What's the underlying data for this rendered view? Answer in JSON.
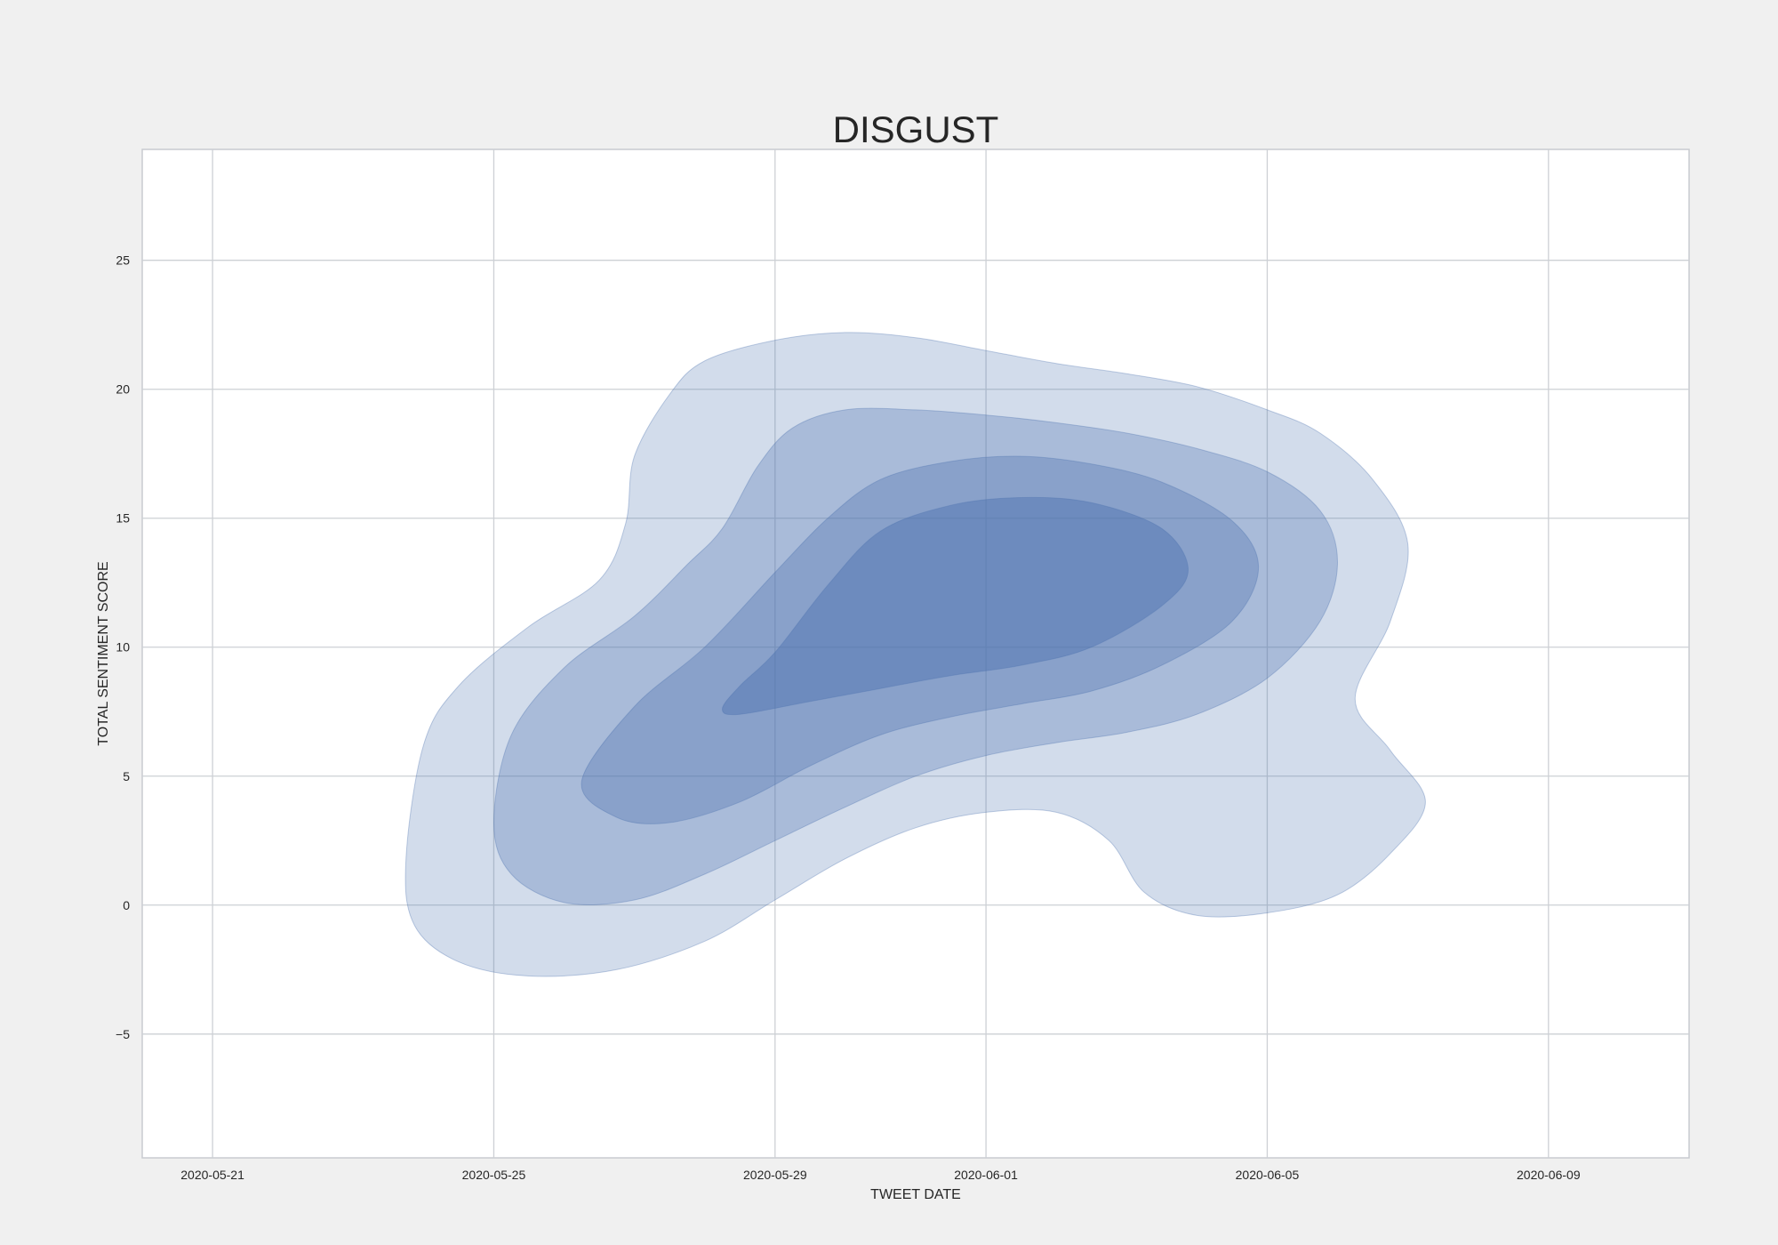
{
  "chart_data": {
    "type": "kde_contour",
    "title": "DISGUST",
    "xlabel": "TWEET DATE",
    "ylabel": "TOTAL SENTIMENT SCORE",
    "x_axis": {
      "kind": "date",
      "range": [
        "2020-05-20",
        "2020-06-11"
      ],
      "ticks": [
        "2020-05-21",
        "2020-05-25",
        "2020-05-29",
        "2020-06-01",
        "2020-06-05",
        "2020-06-09"
      ],
      "tick_labels": [
        "2020-05-21",
        "2020-05-25",
        "2020-05-29",
        "2020-06-01",
        "2020-06-05",
        "2020-06-09"
      ]
    },
    "y_axis": {
      "range": [
        -9.8,
        29.3
      ],
      "ticks": [
        -5,
        0,
        5,
        10,
        15,
        20,
        25
      ],
      "tick_labels": [
        "−5",
        "0",
        "5",
        "10",
        "15",
        "20",
        "25"
      ]
    },
    "grid": true,
    "fill_color": "#4c72b0",
    "levels": [
      {
        "level": 1,
        "opacity": 0.25,
        "points": [
          [
            "2020-05-23 18:00",
            1.7
          ],
          [
            "2020-05-23 21:00",
            -0.8
          ],
          [
            "2020-05-24 12:00",
            -2.2
          ],
          [
            "2020-05-25 12:00",
            -2.75
          ],
          [
            "2020-05-26 18:00",
            -2.5
          ],
          [
            "2020-05-28 00:00",
            -1.4
          ],
          [
            "2020-05-29 00:00",
            0.2
          ],
          [
            "2020-05-30 00:00",
            1.8
          ],
          [
            "2020-05-31 00:00",
            3.0
          ],
          [
            "2020-06-01 00:00",
            3.6
          ],
          [
            "2020-06-02 00:00",
            3.6
          ],
          [
            "2020-06-02 18:00",
            2.5
          ],
          [
            "2020-06-03 06:00",
            0.5
          ],
          [
            "2020-06-04 00:00",
            -0.4
          ],
          [
            "2020-06-05 00:00",
            -0.3
          ],
          [
            "2020-06-06 00:00",
            0.4
          ],
          [
            "2020-06-06 18:00",
            2.0
          ],
          [
            "2020-06-07 06:00",
            4.0
          ],
          [
            "2020-06-06 18:00",
            6.0
          ],
          [
            "2020-06-06 06:00",
            8.0
          ],
          [
            "2020-06-06 18:00",
            11.0
          ],
          [
            "2020-06-07 00:00",
            14.0
          ],
          [
            "2020-06-06 12:00",
            16.5
          ],
          [
            "2020-06-05 18:00",
            18.3
          ],
          [
            "2020-06-05 00:00",
            19.2
          ],
          [
            "2020-06-04 00:00",
            20.1
          ],
          [
            "2020-06-03 00:00",
            20.6
          ],
          [
            "2020-06-02 00:00",
            21.0
          ],
          [
            "2020-06-01 00:00",
            21.5
          ],
          [
            "2020-05-31 00:00",
            22.0
          ],
          [
            "2020-05-30 00:00",
            22.2
          ],
          [
            "2020-05-29 00:00",
            21.9
          ],
          [
            "2020-05-28 00:00",
            21.1
          ],
          [
            "2020-05-27 12:00",
            19.8
          ],
          [
            "2020-05-27 00:00",
            17.4
          ],
          [
            "2020-05-26 21:00",
            14.8
          ],
          [
            "2020-05-26 12:00",
            12.6
          ],
          [
            "2020-05-25 12:00",
            10.8
          ],
          [
            "2020-05-24 12:00",
            8.5
          ],
          [
            "2020-05-24 00:00",
            6.2
          ]
        ]
      },
      {
        "level": 2,
        "opacity": 0.3,
        "points": [
          [
            "2020-05-25 00:00",
            3.2
          ],
          [
            "2020-05-25 06:00",
            1.2
          ],
          [
            "2020-05-26 00:00",
            0.1
          ],
          [
            "2020-05-27 00:00",
            0.2
          ],
          [
            "2020-05-28 00:00",
            1.2
          ],
          [
            "2020-05-29 00:00",
            2.5
          ],
          [
            "2020-05-30 00:00",
            3.8
          ],
          [
            "2020-05-31 00:00",
            5.0
          ],
          [
            "2020-06-01 00:00",
            5.8
          ],
          [
            "2020-06-02 00:00",
            6.3
          ],
          [
            "2020-06-03 00:00",
            6.7
          ],
          [
            "2020-06-04 00:00",
            7.4
          ],
          [
            "2020-06-05 00:00",
            8.8
          ],
          [
            "2020-06-05 18:00",
            11.0
          ],
          [
            "2020-06-06 00:00",
            13.3
          ],
          [
            "2020-06-05 18:00",
            15.3
          ],
          [
            "2020-06-05 00:00",
            16.8
          ],
          [
            "2020-06-04 00:00",
            17.7
          ],
          [
            "2020-06-03 00:00",
            18.3
          ],
          [
            "2020-06-02 00:00",
            18.7
          ],
          [
            "2020-06-01 00:00",
            19.0
          ],
          [
            "2020-05-31 00:00",
            19.2
          ],
          [
            "2020-05-30 00:00",
            19.2
          ],
          [
            "2020-05-29 06:00",
            18.5
          ],
          [
            "2020-05-28 18:00",
            17.0
          ],
          [
            "2020-05-28 06:00",
            14.6
          ],
          [
            "2020-05-27 18:00",
            13.2
          ],
          [
            "2020-05-27 00:00",
            11.2
          ],
          [
            "2020-05-26 00:00",
            9.2
          ],
          [
            "2020-05-25 06:00",
            6.6
          ]
        ]
      },
      {
        "level": 3,
        "opacity": 0.35,
        "points": [
          [
            "2020-05-26 06:00",
            4.8
          ],
          [
            "2020-05-26 18:00",
            3.4
          ],
          [
            "2020-05-27 12:00",
            3.2
          ],
          [
            "2020-05-28 12:00",
            4.0
          ],
          [
            "2020-05-29 12:00",
            5.4
          ],
          [
            "2020-05-30 12:00",
            6.6
          ],
          [
            "2020-05-31 12:00",
            7.3
          ],
          [
            "2020-06-01 12:00",
            7.8
          ],
          [
            "2020-06-02 12:00",
            8.3
          ],
          [
            "2020-06-03 12:00",
            9.3
          ],
          [
            "2020-06-04 12:00",
            11.0
          ],
          [
            "2020-06-04 21:00",
            13.1
          ],
          [
            "2020-06-04 12:00",
            14.9
          ],
          [
            "2020-06-03 12:00",
            16.4
          ],
          [
            "2020-06-02 12:00",
            17.1
          ],
          [
            "2020-06-01 12:00",
            17.4
          ],
          [
            "2020-05-31 12:00",
            17.2
          ],
          [
            "2020-05-30 12:00",
            16.5
          ],
          [
            "2020-05-29 18:00",
            15.0
          ],
          [
            "2020-05-29 00:00",
            12.9
          ],
          [
            "2020-05-28 00:00",
            10.0
          ],
          [
            "2020-05-27 00:00",
            7.7
          ]
        ]
      },
      {
        "level": 4,
        "opacity": 0.45,
        "points": [
          [
            "2020-05-28 06:00",
            7.6
          ],
          [
            "2020-05-28 12:00",
            7.4
          ],
          [
            "2020-05-29 12:00",
            7.9
          ],
          [
            "2020-05-30 12:00",
            8.4
          ],
          [
            "2020-05-31 12:00",
            8.9
          ],
          [
            "2020-06-01 12:00",
            9.3
          ],
          [
            "2020-06-02 12:00",
            10.0
          ],
          [
            "2020-06-03 12:00",
            11.6
          ],
          [
            "2020-06-03 21:00",
            13.0
          ],
          [
            "2020-06-03 12:00",
            14.6
          ],
          [
            "2020-06-02 12:00",
            15.6
          ],
          [
            "2020-06-01 12:00",
            15.8
          ],
          [
            "2020-05-31 12:00",
            15.5
          ],
          [
            "2020-05-30 12:00",
            14.5
          ],
          [
            "2020-05-29 18:00",
            12.4
          ],
          [
            "2020-05-29 00:00",
            9.8
          ],
          [
            "2020-05-28 12:00",
            8.5
          ]
        ]
      }
    ]
  }
}
